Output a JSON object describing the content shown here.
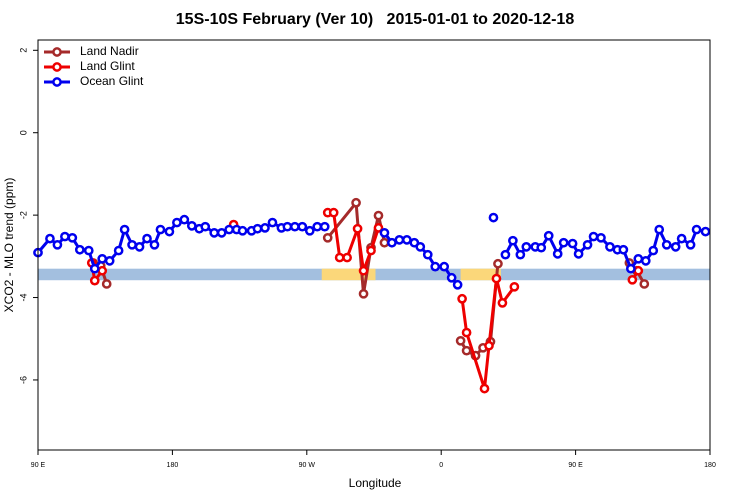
{
  "chart_data": {
    "type": "line",
    "title": "15S-10S February (Ver 10)   2015-01-01 to 2020-12-18",
    "x_label": "Longitude",
    "y_label": "XCO2 - MLO trend (ppm)",
    "xlim": [
      90,
      540
    ],
    "ylim": [
      -7.7,
      2.25
    ],
    "xticks": [
      {
        "value": 90,
        "label": "90 E"
      },
      180,
      {
        "value": 270,
        "label": "90 W"
      },
      {
        "value": 360,
        "label": "0"
      },
      {
        "value": 450,
        "label": "90 E"
      },
      {
        "value": 540,
        "label": "180"
      }
    ],
    "yticks": [
      2,
      0,
      -2,
      -4,
      -6
    ],
    "legend": "top-left",
    "band": {
      "ylim": [
        -3.58,
        -3.3
      ],
      "color": "#a3bfdf",
      "land_color": "#fbd77a",
      "land_spans": [
        [
          280,
          316
        ],
        [
          373,
          400
        ]
      ]
    },
    "series": [
      {
        "name": "Land Nadir",
        "color": "#a52a2a",
        "x": [
          127,
          132,
          136,
          null,
          284,
          303,
          308,
          313,
          318,
          322,
          null,
          373,
          377,
          383,
          388,
          393,
          398,
          null,
          486,
          491,
          496
        ],
        "values": [
          -3.16,
          -3.23,
          -3.67,
          null,
          -2.55,
          -1.7,
          -3.91,
          -2.79,
          -2.01,
          -2.67,
          null,
          -5.05,
          -5.29,
          -5.41,
          -5.22,
          -5.07,
          -3.18,
          null,
          -3.16,
          -3.35,
          -3.67
        ]
      },
      {
        "name": "Land Glint",
        "color": "#ee0000",
        "x": [
          126,
          128,
          133,
          null,
          221,
          null,
          284,
          288,
          292,
          297,
          304,
          308,
          313,
          318,
          null,
          374,
          377,
          389,
          392,
          397,
          401,
          409,
          null,
          488,
          492
        ],
        "values": [
          -3.16,
          -3.59,
          -3.35,
          null,
          -2.23,
          null,
          -1.94,
          -1.94,
          -3.03,
          -3.03,
          -2.33,
          -3.35,
          -2.86,
          -2.31,
          null,
          -4.03,
          -4.85,
          -6.21,
          -5.17,
          -3.54,
          -4.13,
          -3.74,
          null,
          -3.57,
          -3.35
        ]
      },
      {
        "name": "Ocean Glint",
        "color": "#0000ee",
        "x": [
          90,
          98,
          103,
          108,
          113,
          118,
          124,
          128,
          133,
          138,
          144,
          148,
          153,
          158,
          163,
          168,
          172,
          178,
          183,
          188,
          193,
          198,
          202,
          208,
          213,
          218,
          223,
          227,
          233,
          237,
          242,
          247,
          253,
          257,
          262,
          267,
          272,
          277,
          282,
          null,
          322,
          327,
          332,
          337,
          342,
          346,
          351,
          356,
          362,
          367,
          371,
          null,
          395,
          null,
          403,
          408,
          413,
          417,
          423,
          427,
          432,
          438,
          442,
          448,
          452,
          458,
          462,
          467,
          473,
          478,
          482,
          487,
          492,
          497,
          502,
          506,
          511,
          517,
          521,
          527,
          531,
          537
        ],
        "values": [
          -2.91,
          -2.57,
          -2.72,
          -2.52,
          -2.55,
          -2.84,
          -2.86,
          -3.3,
          -3.06,
          -3.11,
          -2.86,
          -2.35,
          -2.72,
          -2.77,
          -2.57,
          -2.72,
          -2.35,
          -2.4,
          -2.18,
          -2.11,
          -2.26,
          -2.33,
          -2.28,
          -2.43,
          -2.43,
          -2.35,
          -2.35,
          -2.38,
          -2.38,
          -2.33,
          -2.31,
          -2.18,
          -2.31,
          -2.28,
          -2.28,
          -2.28,
          -2.38,
          -2.28,
          -2.28,
          null,
          -2.43,
          -2.67,
          -2.6,
          -2.6,
          -2.67,
          -2.77,
          -2.96,
          -3.25,
          -3.25,
          -3.52,
          -3.69,
          null,
          -2.06,
          null,
          -2.96,
          -2.62,
          -2.96,
          -2.77,
          -2.77,
          -2.79,
          -2.5,
          -2.94,
          -2.67,
          -2.69,
          -2.94,
          -2.72,
          -2.52,
          -2.55,
          -2.77,
          -2.84,
          -2.84,
          -3.3,
          -3.06,
          -3.11,
          -2.86,
          -2.35,
          -2.72,
          -2.77,
          -2.57,
          -2.72,
          -2.35,
          -2.4
        ]
      }
    ]
  }
}
